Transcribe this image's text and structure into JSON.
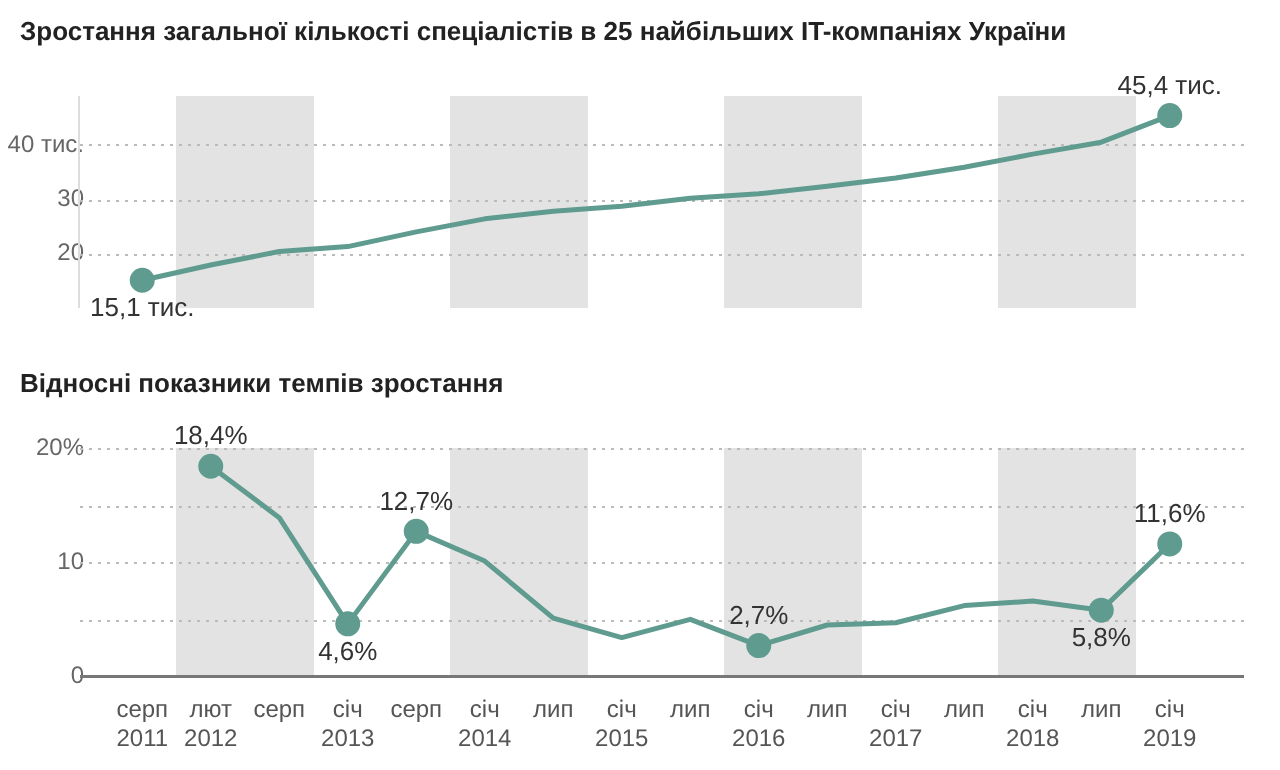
{
  "chart_data": [
    {
      "type": "line",
      "title": "Зростання загальної кількості спеціалістів в 25 найбільших IT-компаніях України",
      "categories": [
        null,
        null,
        null,
        null,
        null,
        null,
        null,
        null,
        null,
        null,
        null,
        null,
        null,
        null,
        null,
        null
      ],
      "series": [
        {
          "color": "#5f9b8f",
          "values": [
            15.1,
            17.9,
            20.4,
            21.3,
            24.0,
            26.4,
            27.8,
            28.7,
            30.2,
            31.0,
            32.4,
            33.9,
            35.9,
            38.3,
            40.5,
            45.4
          ],
          "value_labels": [
            "15,1 тис.",
            null,
            null,
            null,
            null,
            null,
            null,
            null,
            null,
            null,
            null,
            null,
            null,
            null,
            null,
            "45,4 тис."
          ]
        }
      ],
      "ylim": [
        10,
        49
      ],
      "yticks": [
        20,
        30,
        {
          "value": 40,
          "label": "40 тис."
        }
      ],
      "grid": "y",
      "tick_labels": "y",
      "legend": false
    },
    {
      "type": "line",
      "title": "Відносні показники темпів зростання",
      "categories": [
        "серп 2011",
        "лют 2012",
        "серп",
        "січ 2013",
        "серп",
        "січ 2014",
        "лип",
        "січ 2015",
        "лип",
        "січ 2016",
        "лип",
        "січ 2017",
        "лип",
        "січ 2018",
        "лип",
        "січ 2019"
      ],
      "series": [
        {
          "color": "#5f9b8f",
          "values": [
            null,
            18.4,
            13.9,
            4.6,
            12.7,
            10.1,
            5.1,
            3.4,
            5.0,
            2.7,
            4.5,
            4.7,
            6.2,
            6.6,
            5.8,
            11.6
          ],
          "value_labels": [
            null,
            "18,4%",
            null,
            "4,6%",
            "12,7%",
            null,
            null,
            null,
            null,
            "2,7%",
            null,
            null,
            null,
            null,
            "5,8%",
            "11,6%"
          ]
        }
      ],
      "ylim": [
        0,
        20
      ],
      "yticks": [
        0,
        {
          "value": 5,
          "label": null
        },
        10,
        {
          "value": 15,
          "label": null
        },
        {
          "value": 20,
          "label": "20%"
        }
      ],
      "grid": "y",
      "legend": false
    }
  ]
}
